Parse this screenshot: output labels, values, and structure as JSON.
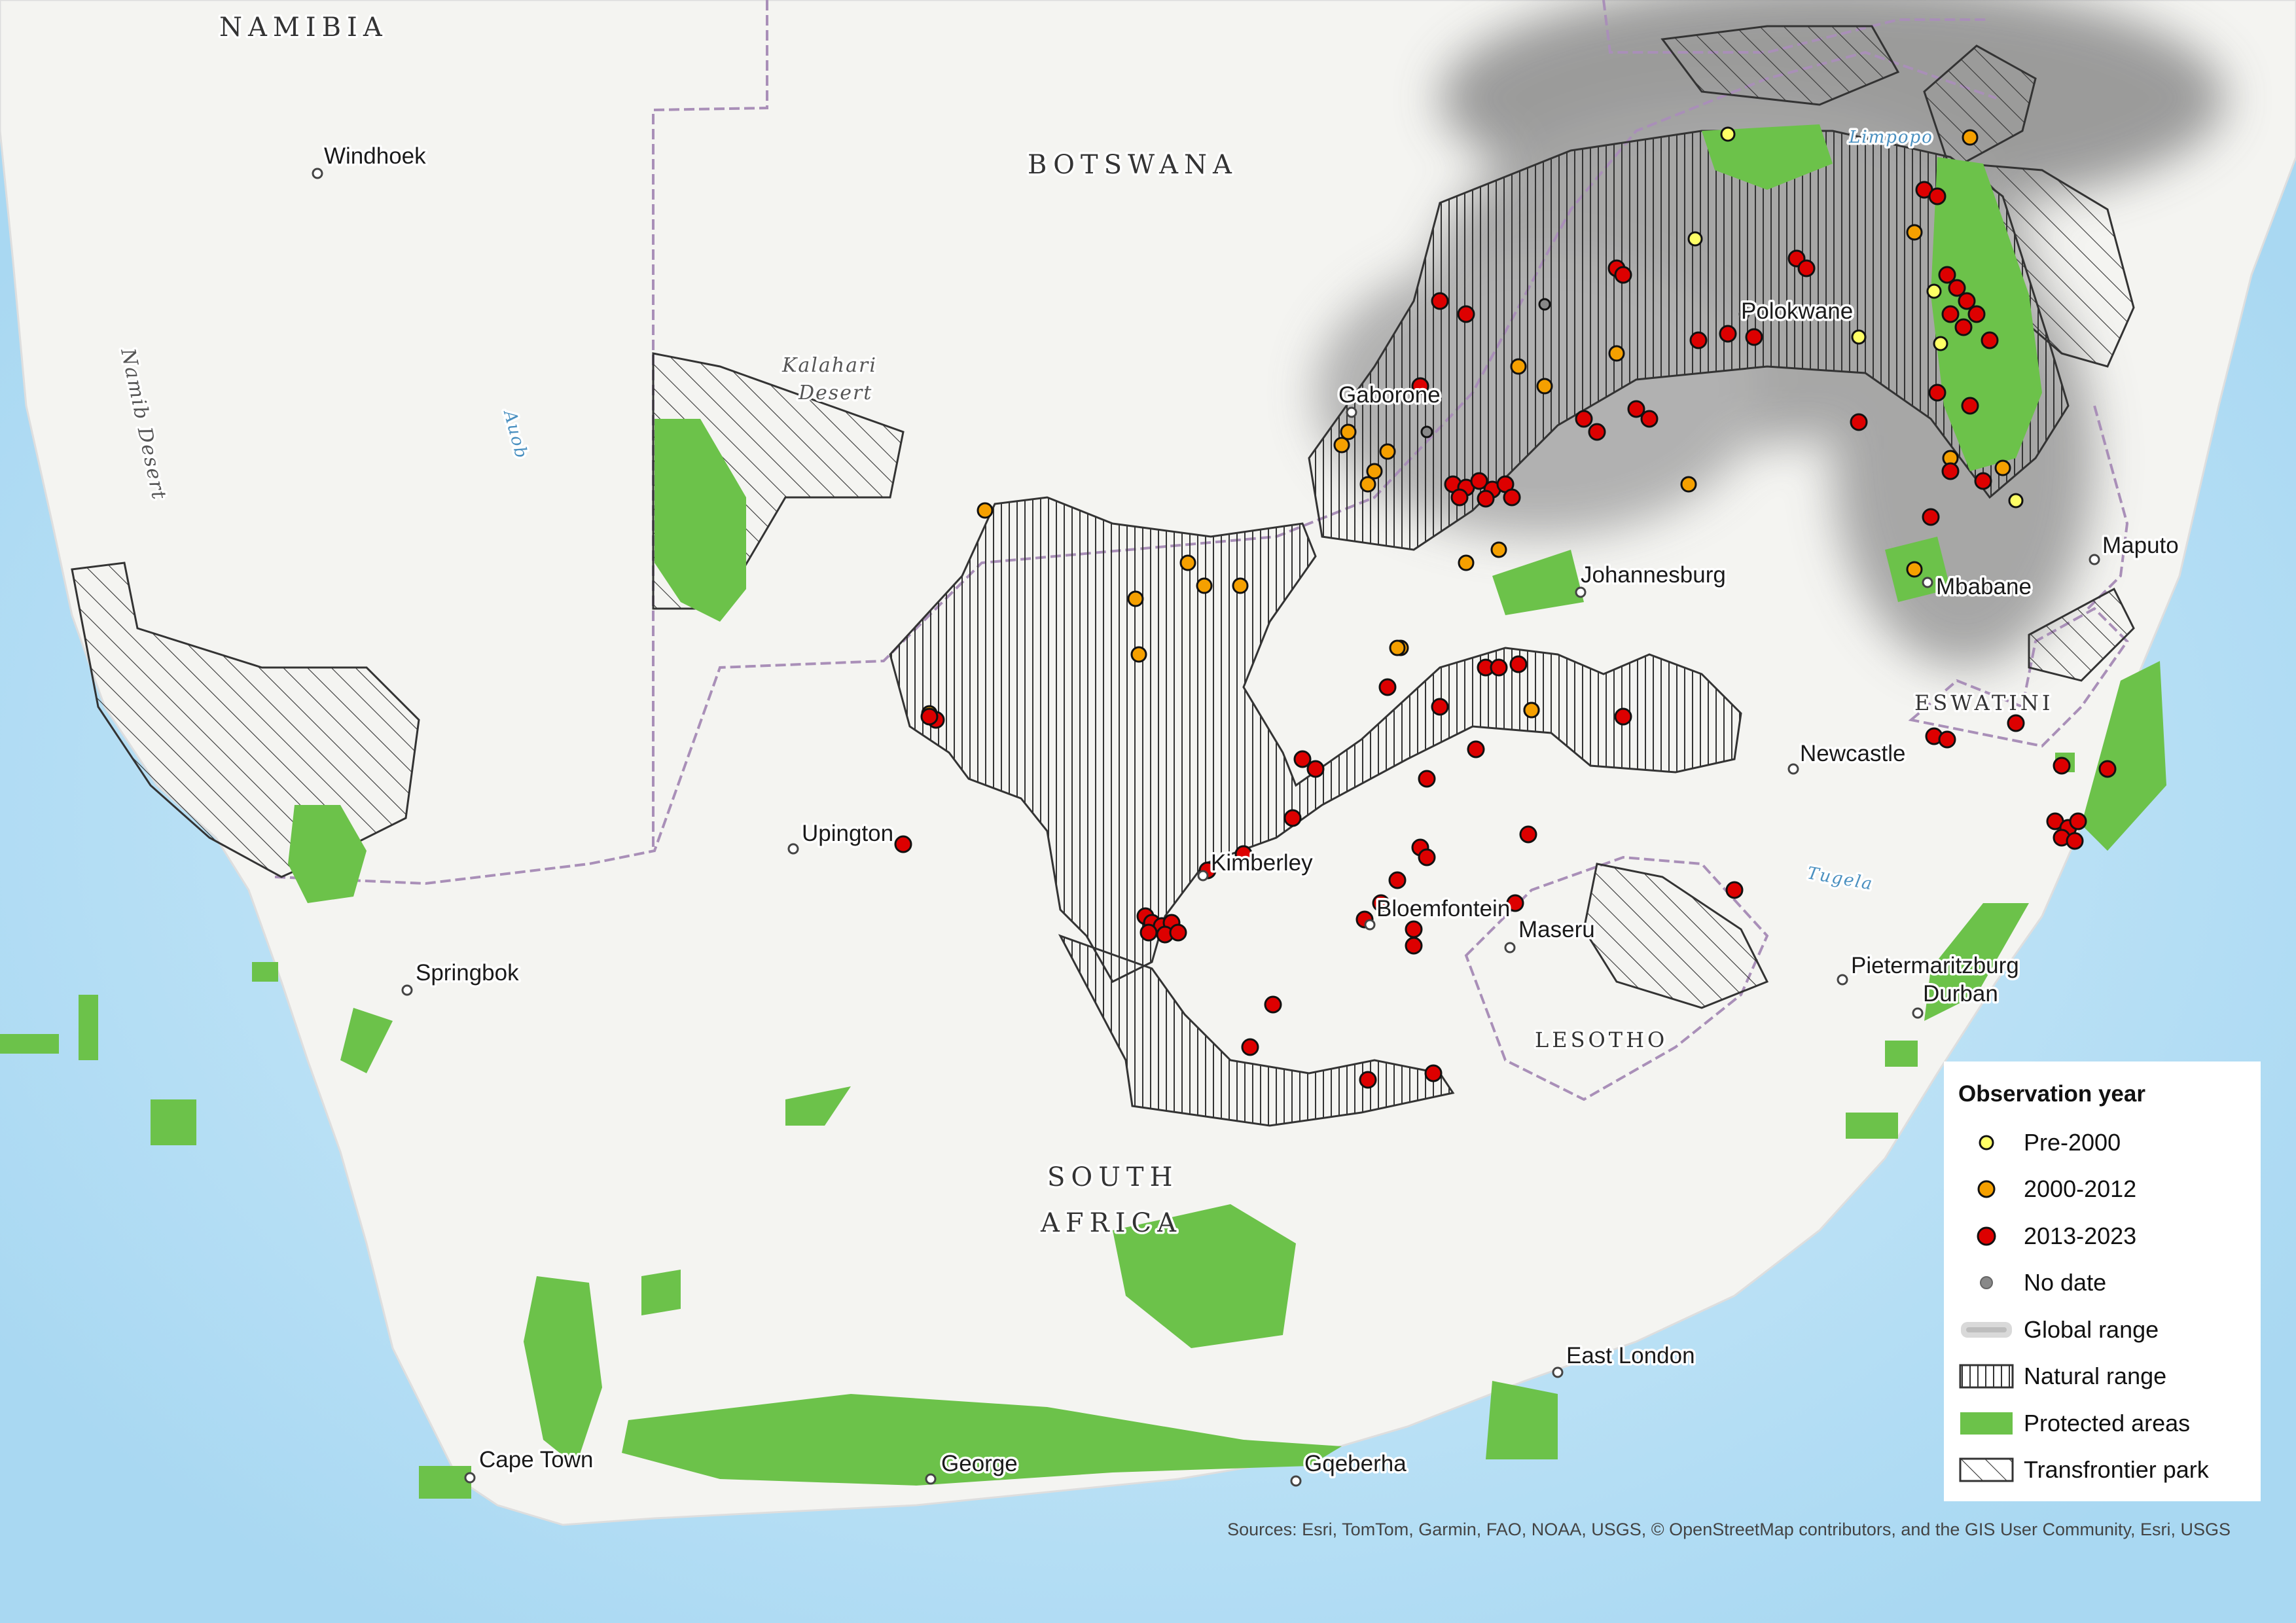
{
  "map": {
    "countries": [
      {
        "name": "NAMIBIA"
      },
      {
        "name": "BOTSWANA"
      },
      {
        "name": "ESWATINI"
      },
      {
        "name": "LESOTHO"
      }
    ],
    "south_africa": [
      "SOUTH",
      "AFRICA"
    ],
    "features": {
      "kalahari": [
        "Kalahari",
        "Desert"
      ],
      "namib": "Namib Desert",
      "auob": "Auob",
      "limpopo": "Limpopo",
      "tugela": "Tugela"
    },
    "cities": [
      {
        "name": "Windhoek"
      },
      {
        "name": "Gaborone"
      },
      {
        "name": "Polokwane"
      },
      {
        "name": "Johannesburg"
      },
      {
        "name": "Maputo"
      },
      {
        "name": "Mbabane"
      },
      {
        "name": "Newcastle"
      },
      {
        "name": "Upington"
      },
      {
        "name": "Kimberley"
      },
      {
        "name": "Bloemfontein"
      },
      {
        "name": "Maseru"
      },
      {
        "name": "Springbok"
      },
      {
        "name": "Pietermaritzburg"
      },
      {
        "name": "Durban"
      },
      {
        "name": "East London"
      },
      {
        "name": "Cape Town"
      },
      {
        "name": "George"
      },
      {
        "name": "Gqeberha"
      }
    ]
  },
  "legend": {
    "title": "Observation year",
    "items": [
      {
        "label": "Pre-2000",
        "color": "#ffff66"
      },
      {
        "label": "2000-2012",
        "color": "#f5a000"
      },
      {
        "label": "2013-2023",
        "color": "#dd0000"
      },
      {
        "label": "No date",
        "color": "#888888"
      },
      {
        "label": "Global range",
        "color": "#c8c8c8"
      },
      {
        "label": "Natural range",
        "color": "#333333"
      },
      {
        "label": "Protected areas",
        "color": "#6cc24a"
      },
      {
        "label": "Transfrontier park",
        "color": "#333333"
      }
    ]
  },
  "attribution": "Sources: Esri, TomTom, Garmin, FAO, NOAA, USGS, © OpenStreetMap contributors, and the GIS User Community, Esri, USGS"
}
